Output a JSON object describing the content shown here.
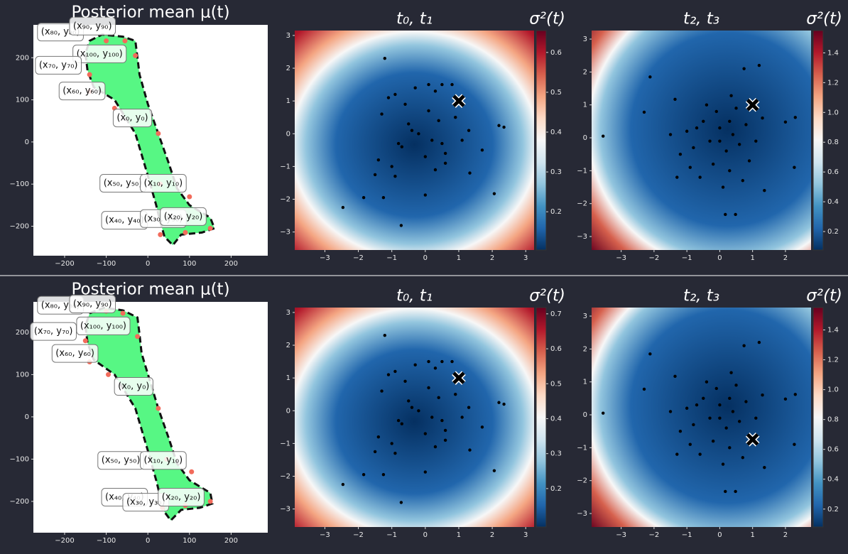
{
  "chart_data": [
    {
      "type": "shape",
      "title": "Posterior mean μ(t)",
      "xlim": [
        -275,
        288
      ],
      "ylim": [
        -270,
        278
      ],
      "xticks": [
        {
          "value": -200,
          "label": "−200"
        },
        {
          "value": -100,
          "label": "−100"
        },
        0,
        100,
        200
      ],
      "yticks": [
        {
          "value": -200,
          "label": "−200"
        },
        {
          "value": -100,
          "label": "−100"
        },
        0,
        100,
        200
      ],
      "fill_color": "#57f784",
      "point_color": "#f26b5b",
      "outline": {
        "x": [
          -140,
          -110,
          -60,
          -30,
          -25,
          -20,
          0,
          25,
          50,
          70,
          100,
          150,
          160,
          130,
          80,
          60,
          40,
          30,
          20,
          0,
          -30,
          -80,
          -130,
          -145,
          -150
        ],
        "y": [
          240,
          255,
          250,
          240,
          200,
          160,
          90,
          20,
          -50,
          -110,
          -150,
          -180,
          -205,
          -215,
          -220,
          -245,
          -225,
          -190,
          -150,
          -80,
          20,
          100,
          130,
          170,
          210
        ]
      },
      "points": {
        "x": [
          -100,
          -55,
          -30,
          -140,
          -140,
          -80,
          25,
          30,
          100,
          150,
          90,
          30
        ],
        "y": [
          240,
          240,
          205,
          160,
          120,
          80,
          20,
          -100,
          -130,
          -205,
          -215,
          -220
        ]
      },
      "labels": [
        {
          "text": "(x₈₀, y₈₀)",
          "x": -210,
          "y": 261
        },
        {
          "text": "(x₉₀, y₉₀)",
          "x": -133,
          "y": 275
        },
        {
          "text": "(x₁₀₀, y₁₀₀)",
          "x": -116,
          "y": 209
        },
        {
          "text": "(x₇₀, y₇₀)",
          "x": -215,
          "y": 182
        },
        {
          "text": "(x₆₀, y₆₀)",
          "x": -158,
          "y": 121
        },
        {
          "text": "(x₀, y₀)",
          "x": -37,
          "y": 57
        },
        {
          "text": "(x₅₀, y₅₀)",
          "x": -60,
          "y": -98
        },
        {
          "text": "(x₁₀, y₁₀)",
          "x": 37,
          "y": -98
        },
        {
          "text": "(x₄₀, y₄₀)",
          "x": -56,
          "y": -186
        },
        {
          "text": "(x₃₀, y₃₀)",
          "x": 37,
          "y": -182
        },
        {
          "text": "(x₂₀, y₂₀)",
          "x": 85,
          "y": -177
        }
      ]
    },
    {
      "type": "heatmap",
      "title": "t₀, t₁",
      "colorbar_label": "σ²(t)",
      "xlim": [
        -3.9,
        3.25
      ],
      "ylim": [
        -3.55,
        3.15
      ],
      "xticks": [
        {
          "value": -3,
          "label": "−3"
        },
        {
          "value": -2,
          "label": "−2"
        },
        {
          "value": -1,
          "label": "−1"
        },
        0,
        1,
        2,
        3
      ],
      "yticks": [
        {
          "value": -3,
          "label": "−3"
        },
        {
          "value": -2,
          "label": "−2"
        },
        {
          "value": -1,
          "label": "−1"
        },
        0,
        1,
        2,
        3
      ],
      "clim": [
        0.104,
        0.655
      ],
      "cticks": [
        0.2,
        0.3,
        0.4,
        0.5,
        0.6
      ],
      "colormap": [
        "#053061",
        "#2166ac",
        "#4393c3",
        "#92c5de",
        "#d1e5f0",
        "#f7f7f7",
        "#fddbc7",
        "#f4a582",
        "#d6604d",
        "#b2182b",
        "#67001f"
      ],
      "x": [
        -1.21,
        -2.46,
        -0.72,
        2.06,
        2.2,
        2.35,
        1.33,
        -1.25,
        -1.84,
        0.0,
        -1.4,
        -1.1,
        -0.9,
        -0.6,
        -0.3,
        0.1,
        0.3,
        0.5,
        0.8,
        0.9,
        -0.5,
        -0.2,
        0.2,
        0.4,
        0.6,
        -0.8,
        -1.0,
        -0.7,
        -0.4,
        0.0,
        0.3,
        0.6,
        1.1,
        1.3,
        1.7,
        -1.5,
        -1.3,
        -0.9,
        0.1,
        0.5
      ],
      "values": [
        2.3,
        -2.25,
        -2.8,
        -1.83,
        0.25,
        0.2,
        -1.2,
        -1.95,
        -1.95,
        -1.87,
        -0.8,
        1.1,
        1.2,
        0.9,
        1.4,
        1.5,
        1.3,
        1.5,
        1.5,
        0.5,
        0.3,
        0.0,
        -0.2,
        0.4,
        -0.6,
        -0.3,
        -1.0,
        -0.4,
        0.1,
        -0.7,
        -1.1,
        -0.9,
        -0.2,
        0.1,
        -0.5,
        -1.25,
        0.6,
        -1.3,
        0.7,
        -0.3
      ],
      "marker": {
        "x": 1,
        "y": 1
      }
    },
    {
      "type": "heatmap",
      "title": "t₂, t₃",
      "colorbar_label": "σ²(t)",
      "xlim": [
        -3.9,
        2.78
      ],
      "ylim": [
        -3.41,
        3.26
      ],
      "xticks": [
        {
          "value": -3,
          "label": "−3"
        },
        {
          "value": -2,
          "label": "−2"
        },
        {
          "value": -1,
          "label": "−1"
        },
        0,
        1,
        2
      ],
      "yticks": [
        {
          "value": -3,
          "label": "−3"
        },
        {
          "value": -2,
          "label": "−2"
        },
        {
          "value": -1,
          "label": "−1"
        },
        0,
        1,
        2,
        3
      ],
      "clim": [
        0.076,
        1.55
      ],
      "cticks": [
        0.2,
        0.4,
        0.6,
        0.8,
        {
          "value": 1,
          "label": "1.0"
        },
        1.2,
        1.4
      ],
      "colormap": [
        "#053061",
        "#2166ac",
        "#4393c3",
        "#92c5de",
        "#d1e5f0",
        "#f7f7f7",
        "#fddbc7",
        "#f4a582",
        "#d6604d",
        "#b2182b",
        "#67001f"
      ],
      "x": [
        -3.55,
        -2.12,
        -2.3,
        2.27,
        2.0,
        2.3,
        0.74,
        1.2,
        0.17,
        0.48,
        1.36,
        -1.36,
        0.35,
        -1.0,
        -0.8,
        -0.5,
        -0.3,
        0.0,
        0.2,
        0.4,
        0.6,
        0.8,
        -0.2,
        0.3,
        -0.6,
        -1.2,
        0.9,
        -0.1,
        0.5,
        1.1,
        -0.9,
        0.1,
        -1.5,
        0.7,
        -0.4,
        1.3,
        -1.3,
        0.0,
        0.3,
        -0.7
      ],
      "values": [
        0.05,
        1.85,
        0.78,
        -0.9,
        0.48,
        0.62,
        2.1,
        2.2,
        -2.33,
        -2.33,
        -1.6,
        1.17,
        1.28,
        0.2,
        -0.3,
        0.5,
        -0.1,
        0.3,
        -0.4,
        0.1,
        -0.2,
        0.4,
        -0.8,
        -1.0,
        -1.2,
        -0.5,
        -0.7,
        0.8,
        0.9,
        -0.1,
        -0.9,
        -1.5,
        0.1,
        -1.3,
        1.0,
        0.6,
        -1.2,
        -0.1,
        0.5,
        0.3
      ],
      "marker": {
        "x": 1,
        "y": 1
      }
    },
    {
      "type": "shape",
      "title": "Posterior mean μ(t)",
      "xlim": [
        -275,
        288
      ],
      "ylim": [
        -274,
        272
      ],
      "xticks": [
        {
          "value": -200,
          "label": "−200"
        },
        {
          "value": -100,
          "label": "−100"
        },
        0,
        100,
        200
      ],
      "yticks": [
        {
          "value": -200,
          "label": "−200"
        },
        {
          "value": -100,
          "label": "−100"
        },
        0,
        100,
        200
      ],
      "fill_color": "#57f784",
      "point_color": "#f26b5b",
      "outline": {
        "x": [
          -140,
          -105,
          -60,
          -25,
          -20,
          -15,
          5,
          25,
          50,
          70,
          100,
          150,
          155,
          125,
          80,
          55,
          40,
          30,
          20,
          0,
          -30,
          -80,
          -130,
          -145,
          -150
        ],
        "y": [
          245,
          258,
          252,
          235,
          195,
          150,
          85,
          20,
          -50,
          -110,
          -150,
          -180,
          -205,
          -215,
          -220,
          -245,
          -225,
          -190,
          -150,
          -80,
          20,
          100,
          135,
          175,
          215
        ]
      },
      "points": {
        "x": [
          -100,
          -60,
          -25,
          -150,
          -140,
          -95,
          25,
          45,
          105,
          150,
          90,
          35
        ],
        "y": [
          250,
          245,
          190,
          180,
          130,
          100,
          20,
          -100,
          -130,
          -200,
          -210,
          -215
        ]
      },
      "labels": [
        {
          "text": "(x₈₀, y₈₀)",
          "x": -210,
          "y": 264
        },
        {
          "text": "(x₉₀, y₉₀)",
          "x": -133,
          "y": 267
        },
        {
          "text": "(x₁₀₀, y₁₀₀)",
          "x": -107,
          "y": 215
        },
        {
          "text": "(x₇₀, y₇₀)",
          "x": -227,
          "y": 202
        },
        {
          "text": "(x₆₀, y₆₀)",
          "x": -175,
          "y": 150
        },
        {
          "text": "(x₀, y₀)",
          "x": -34,
          "y": 72
        },
        {
          "text": "(x₅₀, y₅₀)",
          "x": -65,
          "y": -103
        },
        {
          "text": "(x₁₀, y₁₀)",
          "x": 37,
          "y": -103
        },
        {
          "text": "(x₄₀, y₄₀)",
          "x": -56,
          "y": -190
        },
        {
          "text": "(x₃₀, y₃₀)",
          "x": -5,
          "y": -202
        },
        {
          "text": "(x₂₀, y₂₀)",
          "x": 80,
          "y": -190
        }
      ]
    },
    {
      "type": "heatmap",
      "title": "t₀, t₁",
      "colorbar_label": "σ²(t)",
      "xlim": [
        -3.9,
        3.25
      ],
      "ylim": [
        -3.55,
        3.15
      ],
      "xticks": [
        {
          "value": -3,
          "label": "−3"
        },
        {
          "value": -2,
          "label": "−2"
        },
        {
          "value": -1,
          "label": "−1"
        },
        0,
        1,
        2,
        3
      ],
      "yticks": [
        {
          "value": -3,
          "label": "−3"
        },
        {
          "value": -2,
          "label": "−2"
        },
        {
          "value": -1,
          "label": "−1"
        },
        0,
        1,
        2,
        3
      ],
      "clim": [
        0.09,
        0.718
      ],
      "cticks": [
        0.2,
        0.3,
        0.4,
        0.5,
        0.6,
        0.7
      ],
      "colormap": [
        "#053061",
        "#2166ac",
        "#4393c3",
        "#92c5de",
        "#d1e5f0",
        "#f7f7f7",
        "#fddbc7",
        "#f4a582",
        "#d6604d",
        "#b2182b",
        "#67001f"
      ],
      "x": [
        -1.21,
        -2.46,
        -0.72,
        2.06,
        2.2,
        2.35,
        1.33,
        -1.25,
        -1.84,
        0.0,
        -1.4,
        -1.1,
        -0.9,
        -0.6,
        -0.3,
        0.1,
        0.3,
        0.5,
        0.8,
        0.9,
        -0.5,
        -0.2,
        0.2,
        0.4,
        0.6,
        -0.8,
        -1.0,
        -0.7,
        -0.4,
        0.0,
        0.3,
        0.6,
        1.1,
        1.3,
        1.7,
        -1.5,
        -1.3,
        -0.9,
        0.1,
        0.5
      ],
      "values": [
        2.3,
        -2.25,
        -2.8,
        -1.83,
        0.25,
        0.2,
        -1.2,
        -1.95,
        -1.95,
        -1.87,
        -0.8,
        1.1,
        1.2,
        0.9,
        1.4,
        1.5,
        1.3,
        1.5,
        1.5,
        0.5,
        0.3,
        0.0,
        -0.2,
        0.4,
        -0.6,
        -0.3,
        -1.0,
        -0.4,
        0.1,
        -0.7,
        -1.1,
        -0.9,
        -0.2,
        0.1,
        -0.5,
        -1.25,
        0.6,
        -1.3,
        0.7,
        -0.3
      ],
      "marker": {
        "x": 1,
        "y": 1
      }
    },
    {
      "type": "heatmap",
      "title": "t₂, t₃",
      "colorbar_label": "σ²(t)",
      "xlim": [
        -3.9,
        2.78
      ],
      "ylim": [
        -3.41,
        3.26
      ],
      "xticks": [
        {
          "value": -3,
          "label": "−3"
        },
        {
          "value": -2,
          "label": "−2"
        },
        {
          "value": -1,
          "label": "−1"
        },
        0,
        1,
        2
      ],
      "yticks": [
        {
          "value": -3,
          "label": "−3"
        },
        {
          "value": -2,
          "label": "−2"
        },
        {
          "value": -1,
          "label": "−1"
        },
        0,
        1,
        2,
        3
      ],
      "clim": [
        0.08,
        1.55
      ],
      "cticks": [
        0.2,
        0.4,
        0.6,
        0.8,
        {
          "value": 1,
          "label": "1.0"
        },
        1.2,
        1.4
      ],
      "colormap": [
        "#053061",
        "#2166ac",
        "#4393c3",
        "#92c5de",
        "#d1e5f0",
        "#f7f7f7",
        "#fddbc7",
        "#f4a582",
        "#d6604d",
        "#b2182b",
        "#67001f"
      ],
      "x": [
        -3.55,
        -2.12,
        -2.3,
        2.27,
        2.0,
        2.3,
        0.74,
        1.2,
        0.17,
        0.48,
        1.36,
        -1.36,
        0.35,
        -1.0,
        -0.8,
        -0.5,
        -0.3,
        0.0,
        0.2,
        0.4,
        0.6,
        0.8,
        -0.2,
        0.3,
        -0.6,
        -1.2,
        0.9,
        -0.1,
        0.5,
        1.1,
        -0.9,
        0.1,
        -1.5,
        0.7,
        -0.4,
        1.3,
        -1.3,
        0.0,
        0.3,
        -0.7
      ],
      "values": [
        0.05,
        1.85,
        0.78,
        -0.9,
        0.48,
        0.62,
        2.1,
        2.2,
        -2.33,
        -2.33,
        -1.6,
        1.17,
        1.28,
        0.2,
        -0.3,
        0.5,
        -0.1,
        0.3,
        -0.4,
        0.1,
        -0.2,
        0.4,
        -0.8,
        -1.0,
        -1.2,
        -0.5,
        -0.7,
        0.8,
        0.9,
        -0.1,
        -0.9,
        -1.5,
        0.1,
        -1.3,
        1.0,
        0.6,
        -1.2,
        -0.1,
        0.5,
        0.3
      ],
      "marker": {
        "x": 1,
        "y": -0.75
      }
    }
  ]
}
